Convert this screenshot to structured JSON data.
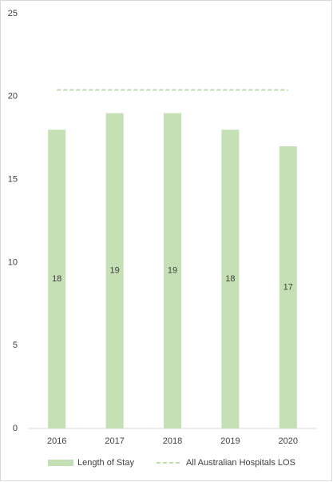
{
  "chart_data": {
    "type": "bar",
    "categories": [
      "2016",
      "2017",
      "2018",
      "2019",
      "2020"
    ],
    "series": [
      {
        "name": "Length of Stay",
        "type": "bar",
        "color": "#c5e0b4",
        "values": [
          18,
          19,
          19,
          18,
          17
        ],
        "data_labels": true
      },
      {
        "name": "All Australian Hospitals LOS",
        "type": "line",
        "color": "#a9d18e",
        "dashed": true,
        "values": [
          20.4,
          20.4,
          20.4,
          20.4,
          20.4
        ]
      }
    ],
    "ylim": [
      0,
      25
    ],
    "yticks": [
      0,
      5,
      10,
      15,
      20,
      25
    ],
    "grid": false,
    "legend": "bottom"
  }
}
